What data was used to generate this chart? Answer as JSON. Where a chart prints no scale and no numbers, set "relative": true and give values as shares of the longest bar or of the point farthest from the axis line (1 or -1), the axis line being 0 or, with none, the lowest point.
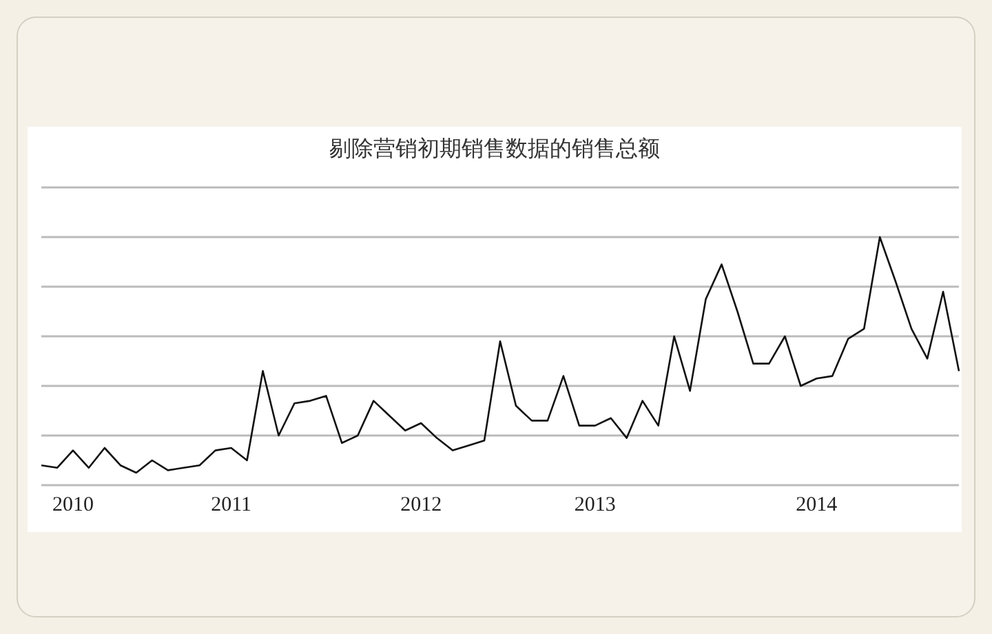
{
  "chart_data": {
    "type": "line",
    "title": "剔除营销初期销售数据的销售总额",
    "relative": true,
    "grid": "y",
    "legend": false,
    "marker": "none",
    "line_style": "solid",
    "categories": [
      null,
      null,
      "2010",
      null,
      null,
      null,
      null,
      null,
      null,
      null,
      null,
      null,
      "2011",
      null,
      null,
      null,
      null,
      null,
      null,
      null,
      null,
      null,
      null,
      null,
      "2012",
      null,
      null,
      null,
      null,
      null,
      null,
      null,
      null,
      null,
      null,
      "2013",
      null,
      null,
      null,
      null,
      null,
      null,
      null,
      null,
      null,
      null,
      null,
      null,
      null,
      "2014",
      null,
      null,
      null,
      null,
      null,
      null,
      null,
      null,
      null
    ],
    "series": [
      {
        "color": "#111111",
        "values": [
          0.08,
          0.07,
          0.14,
          0.07,
          0.15,
          0.08,
          0.05,
          0.1,
          0.06,
          0.07,
          0.08,
          0.14,
          0.15,
          0.1,
          0.46,
          0.2,
          0.33,
          0.34,
          0.36,
          0.17,
          0.2,
          0.34,
          0.28,
          0.22,
          0.25,
          0.19,
          0.14,
          0.16,
          0.18,
          0.58,
          0.32,
          0.26,
          0.26,
          0.44,
          0.24,
          0.24,
          0.27,
          0.19,
          0.34,
          0.24,
          0.6,
          0.38,
          0.75,
          0.89,
          0.7,
          0.49,
          0.49,
          0.6,
          0.4,
          0.43,
          0.44,
          0.59,
          0.63,
          1,
          0.82,
          0.63,
          0.51,
          0.78,
          0.46
        ]
      }
    ]
  }
}
